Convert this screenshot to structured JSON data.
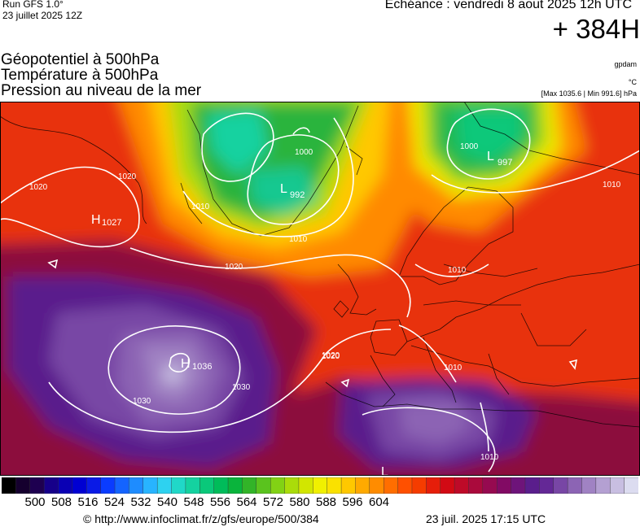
{
  "header": {
    "run_title": "Run GFS 1.0°",
    "run_date": "23 juillet 2025 12Z",
    "echeance": "Echéance : vendredi 8 aout 2025 12h UTC",
    "lead_time": "+ 384H"
  },
  "fields": [
    "Géopotentiel à 500hPa",
    "Température à 500hPa",
    "Pression au niveau de la mer"
  ],
  "units": {
    "geopotential": "gpdam",
    "temperature": "°C",
    "pressure_range": "[Max 1035.6 | Min 991.6] hPa"
  },
  "centers": {
    "h1": {
      "letter": "H",
      "value": "1027"
    },
    "h2": {
      "letter": "H",
      "value": "1036"
    },
    "l1": {
      "letter": "L",
      "value": "992"
    },
    "l2": {
      "letter": "L",
      "value": "997"
    },
    "l3": {
      "letter": "L",
      "value": ""
    }
  },
  "isobar_labels": {
    "a": "1020",
    "b": "1000",
    "c": "1010",
    "d": "1020",
    "e": "1030",
    "f": "1030",
    "g": "1020",
    "h": "1010",
    "i": "1010",
    "j": "1010",
    "k": "1000",
    "l": "1010",
    "m": "1020",
    "n": "1020",
    "o": "1010"
  },
  "scale": {
    "ticks": [
      "500",
      "508",
      "516",
      "524",
      "532",
      "540",
      "548",
      "556",
      "564",
      "572",
      "580",
      "588",
      "596",
      "604"
    ],
    "colors": [
      "#000000",
      "#15002e",
      "#1e0050",
      "#16008a",
      "#0a00b4",
      "#0000d2",
      "#0a1ae6",
      "#0a3cff",
      "#1464ff",
      "#1e8cff",
      "#28b4ff",
      "#2ed2f0",
      "#20d8c8",
      "#14d2a0",
      "#0ac87a",
      "#00bc5a",
      "#0ab43c",
      "#32b428",
      "#5ac31e",
      "#82d214",
      "#aadc0a",
      "#d2e600",
      "#f0f000",
      "#fae100",
      "#ffc800",
      "#ffaa00",
      "#ff8c00",
      "#ff6e00",
      "#ff5000",
      "#f53c00",
      "#e61e0a",
      "#d20a14",
      "#be0a28",
      "#aa0a3c",
      "#960a50",
      "#820a64",
      "#6e147a",
      "#5a1e8c",
      "#642896",
      "#7846a5",
      "#8c64b4",
      "#a082c3",
      "#b4a0d2",
      "#c8bee1",
      "#dcdcf0"
    ]
  },
  "footer": {
    "url": "© http://www.infoclimat.fr/z/gfs/europe/500/384",
    "generated": "23 juil. 2025 17:15 UTC"
  }
}
